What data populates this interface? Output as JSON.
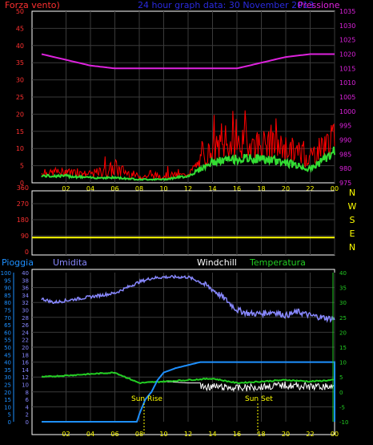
{
  "header": {
    "left": "Forza vento)",
    "center": "24 hour graph data:  30 November 2013",
    "right": "Pressione"
  },
  "colors": {
    "wind": "#ff0000",
    "gust_base": "#33dd33",
    "pressure": "#dd22dd",
    "direction": "#ffff00",
    "humidity": "#8888ff",
    "rain": "#1e90ff",
    "temperature": "#22cc22",
    "windchill": "#ffffff",
    "grid": "#3a3a3a",
    "frame": "#ffffff",
    "xaxis": "#ffff00"
  },
  "x_ticks": [
    "02",
    "04",
    "06",
    "08",
    "10",
    "12",
    "14",
    "16",
    "18",
    "20",
    "22",
    "00"
  ],
  "chart_data": [
    {
      "type": "line",
      "title": "24 hour graph data:  30 November 2013",
      "x_ticks": [
        "02",
        "04",
        "06",
        "08",
        "10",
        "12",
        "14",
        "16",
        "18",
        "20",
        "22",
        "00"
      ],
      "left_axis": {
        "label": "Forza vento)",
        "ticks": [
          "0",
          "5",
          "10",
          "15",
          "20",
          "25",
          "30",
          "35",
          "40",
          "45",
          "50"
        ],
        "ylim": [
          0,
          50
        ]
      },
      "right_axis": {
        "label": "Pressione",
        "ticks": [
          "975",
          "980",
          "985",
          "990",
          "995",
          "1000",
          "1005",
          "1010",
          "1015",
          "1020",
          "1025",
          "1030",
          "1035"
        ],
        "ylim": [
          975,
          1035
        ]
      },
      "series": [
        {
          "axis": "right",
          "x": [
            0,
            2,
            4,
            6,
            8,
            10,
            12,
            14,
            16,
            18,
            20,
            22,
            24
          ],
          "values": [
            1020,
            1018,
            1016,
            1015,
            1015,
            1015,
            1015,
            1015,
            1015,
            1017,
            1019,
            1020,
            1020
          ]
        }
      ],
      "wind_noise": {
        "x": [
          0,
          2,
          4,
          6,
          8,
          10,
          12,
          14,
          16,
          18,
          20,
          22,
          24
        ],
        "avg": [
          2,
          2,
          1.5,
          1.5,
          1,
          1,
          2,
          6,
          7,
          7,
          6,
          4,
          9
        ],
        "gust": [
          4,
          5,
          4,
          8,
          3,
          4,
          3,
          16,
          18,
          18,
          16,
          13,
          20
        ]
      }
    },
    {
      "type": "line",
      "right_axis": {
        "labels": [
          "N",
          "W",
          "S",
          "E",
          "N"
        ]
      },
      "left_axis": {
        "ticks": [
          "0",
          "90",
          "180",
          "270",
          "360"
        ],
        "ylim": [
          0,
          360
        ]
      },
      "series": [
        {
          "axis": "left",
          "x": [
            0,
            24
          ],
          "values": [
            80,
            80
          ]
        }
      ]
    },
    {
      "type": "line",
      "labels": [
        "Pioggia",
        "Umidita",
        "Windchill",
        "Temperatura"
      ],
      "annotations": [
        "Sun Rise",
        "Sun Set"
      ],
      "rain_axis": {
        "label": "Pioggia",
        "ticks": [
          "0",
          "5",
          "10",
          "15",
          "20",
          "25",
          "30",
          "35",
          "40",
          "45",
          "50",
          "55",
          "60",
          "65",
          "70",
          "75",
          "80",
          "85",
          "90",
          "95",
          "100"
        ],
        "ylim": [
          0,
          100
        ]
      },
      "inner_axis": {
        "label": "Umidita",
        "ticks": [
          "0",
          "2",
          "4",
          "6",
          "8",
          "10",
          "12",
          "14",
          "16",
          "18",
          "20",
          "22",
          "24",
          "26",
          "28",
          "30",
          "32",
          "34",
          "36",
          "38",
          "40"
        ],
        "ylim": [
          0,
          40
        ]
      },
      "right_axis": {
        "label": "Temperatura",
        "ticks": [
          "-10",
          "-5",
          "0",
          "5",
          "10",
          "15",
          "20",
          "25",
          "30",
          "35",
          "40"
        ],
        "ylim": [
          -10,
          40
        ]
      },
      "series": [
        {
          "axis": "inner",
          "x": [
            0,
            1,
            2,
            3,
            4,
            5,
            6,
            7,
            8,
            9,
            10,
            11,
            12,
            13,
            14,
            15,
            16,
            17,
            18,
            19,
            20,
            21,
            22,
            23,
            24
          ],
          "values": [
            33,
            32,
            32.5,
            33,
            33.5,
            34,
            34.5,
            36,
            37.5,
            38.5,
            38.8,
            38.8,
            38.8,
            37.5,
            35.5,
            33,
            30,
            29,
            29,
            29.5,
            28.5,
            29.5,
            28.5,
            28,
            27.5
          ]
        },
        {
          "axis": "right",
          "x": [
            0,
            2,
            4,
            6,
            8,
            10,
            12,
            14,
            16,
            18,
            20,
            22,
            24
          ],
          "values": [
            5,
            5.5,
            6,
            6.5,
            3,
            3.5,
            4,
            4.5,
            3,
            3.5,
            4,
            3.5,
            4
          ]
        },
        {
          "axis": "right",
          "x": [
            0,
            2,
            4,
            6,
            8,
            10,
            12,
            14,
            16,
            18,
            20,
            22,
            24
          ],
          "values": [
            5,
            5.5,
            6,
            6.5,
            3,
            3.5,
            3,
            3,
            2.5,
            3,
            3.5,
            3,
            3
          ]
        },
        {
          "axis": "rain",
          "x": [
            0,
            7.8,
            8,
            8.5,
            9,
            9.5,
            10,
            11,
            12,
            13,
            24
          ],
          "values": [
            0,
            0,
            5,
            15,
            20,
            28,
            33,
            36,
            38,
            40,
            40
          ]
        }
      ]
    }
  ]
}
